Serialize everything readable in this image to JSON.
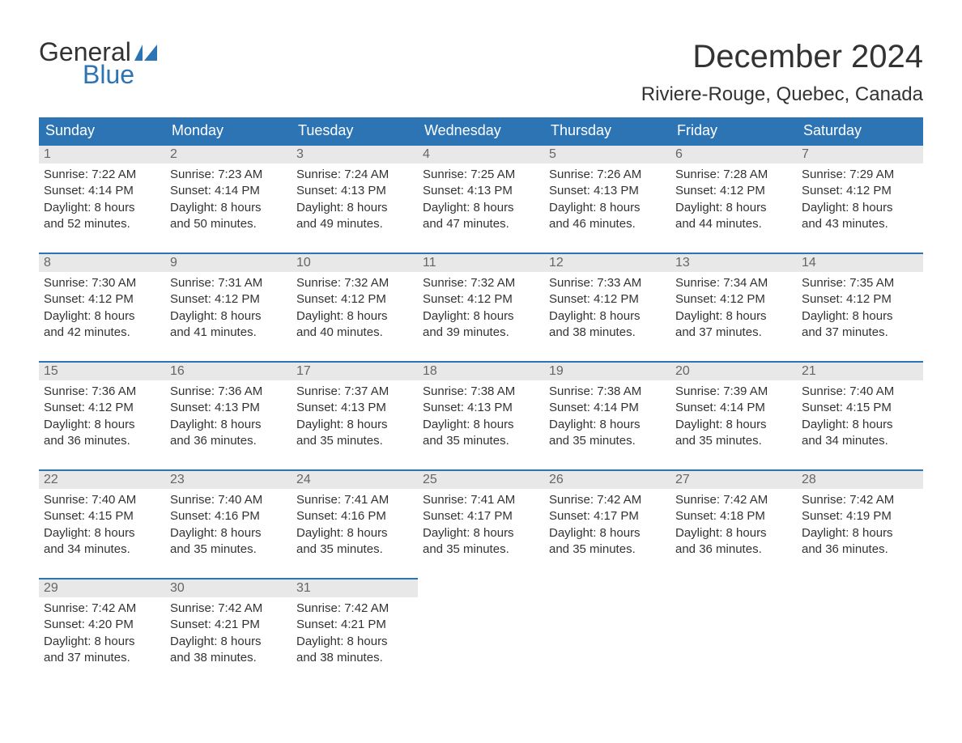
{
  "logo": {
    "line1": "General",
    "line2": "Blue"
  },
  "header": {
    "month": "December 2024",
    "location": "Riviere-Rouge, Quebec, Canada"
  },
  "columns": [
    "Sunday",
    "Monday",
    "Tuesday",
    "Wednesday",
    "Thursday",
    "Friday",
    "Saturday"
  ],
  "colors": {
    "header_bg": "#2d74b5",
    "header_text": "#ffffff",
    "daynum_bg": "#e8e8e8",
    "daynum_text": "#666666",
    "row_border": "#2d74b5",
    "body_text": "#333333",
    "logo_accent": "#2d74b5"
  },
  "weeks": [
    [
      {
        "n": "1",
        "sunrise": "Sunrise: 7:22 AM",
        "sunset": "Sunset: 4:14 PM",
        "d1": "Daylight: 8 hours",
        "d2": "and 52 minutes."
      },
      {
        "n": "2",
        "sunrise": "Sunrise: 7:23 AM",
        "sunset": "Sunset: 4:14 PM",
        "d1": "Daylight: 8 hours",
        "d2": "and 50 minutes."
      },
      {
        "n": "3",
        "sunrise": "Sunrise: 7:24 AM",
        "sunset": "Sunset: 4:13 PM",
        "d1": "Daylight: 8 hours",
        "d2": "and 49 minutes."
      },
      {
        "n": "4",
        "sunrise": "Sunrise: 7:25 AM",
        "sunset": "Sunset: 4:13 PM",
        "d1": "Daylight: 8 hours",
        "d2": "and 47 minutes."
      },
      {
        "n": "5",
        "sunrise": "Sunrise: 7:26 AM",
        "sunset": "Sunset: 4:13 PM",
        "d1": "Daylight: 8 hours",
        "d2": "and 46 minutes."
      },
      {
        "n": "6",
        "sunrise": "Sunrise: 7:28 AM",
        "sunset": "Sunset: 4:12 PM",
        "d1": "Daylight: 8 hours",
        "d2": "and 44 minutes."
      },
      {
        "n": "7",
        "sunrise": "Sunrise: 7:29 AM",
        "sunset": "Sunset: 4:12 PM",
        "d1": "Daylight: 8 hours",
        "d2": "and 43 minutes."
      }
    ],
    [
      {
        "n": "8",
        "sunrise": "Sunrise: 7:30 AM",
        "sunset": "Sunset: 4:12 PM",
        "d1": "Daylight: 8 hours",
        "d2": "and 42 minutes."
      },
      {
        "n": "9",
        "sunrise": "Sunrise: 7:31 AM",
        "sunset": "Sunset: 4:12 PM",
        "d1": "Daylight: 8 hours",
        "d2": "and 41 minutes."
      },
      {
        "n": "10",
        "sunrise": "Sunrise: 7:32 AM",
        "sunset": "Sunset: 4:12 PM",
        "d1": "Daylight: 8 hours",
        "d2": "and 40 minutes."
      },
      {
        "n": "11",
        "sunrise": "Sunrise: 7:32 AM",
        "sunset": "Sunset: 4:12 PM",
        "d1": "Daylight: 8 hours",
        "d2": "and 39 minutes."
      },
      {
        "n": "12",
        "sunrise": "Sunrise: 7:33 AM",
        "sunset": "Sunset: 4:12 PM",
        "d1": "Daylight: 8 hours",
        "d2": "and 38 minutes."
      },
      {
        "n": "13",
        "sunrise": "Sunrise: 7:34 AM",
        "sunset": "Sunset: 4:12 PM",
        "d1": "Daylight: 8 hours",
        "d2": "and 37 minutes."
      },
      {
        "n": "14",
        "sunrise": "Sunrise: 7:35 AM",
        "sunset": "Sunset: 4:12 PM",
        "d1": "Daylight: 8 hours",
        "d2": "and 37 minutes."
      }
    ],
    [
      {
        "n": "15",
        "sunrise": "Sunrise: 7:36 AM",
        "sunset": "Sunset: 4:12 PM",
        "d1": "Daylight: 8 hours",
        "d2": "and 36 minutes."
      },
      {
        "n": "16",
        "sunrise": "Sunrise: 7:36 AM",
        "sunset": "Sunset: 4:13 PM",
        "d1": "Daylight: 8 hours",
        "d2": "and 36 minutes."
      },
      {
        "n": "17",
        "sunrise": "Sunrise: 7:37 AM",
        "sunset": "Sunset: 4:13 PM",
        "d1": "Daylight: 8 hours",
        "d2": "and 35 minutes."
      },
      {
        "n": "18",
        "sunrise": "Sunrise: 7:38 AM",
        "sunset": "Sunset: 4:13 PM",
        "d1": "Daylight: 8 hours",
        "d2": "and 35 minutes."
      },
      {
        "n": "19",
        "sunrise": "Sunrise: 7:38 AM",
        "sunset": "Sunset: 4:14 PM",
        "d1": "Daylight: 8 hours",
        "d2": "and 35 minutes."
      },
      {
        "n": "20",
        "sunrise": "Sunrise: 7:39 AM",
        "sunset": "Sunset: 4:14 PM",
        "d1": "Daylight: 8 hours",
        "d2": "and 35 minutes."
      },
      {
        "n": "21",
        "sunrise": "Sunrise: 7:40 AM",
        "sunset": "Sunset: 4:15 PM",
        "d1": "Daylight: 8 hours",
        "d2": "and 34 minutes."
      }
    ],
    [
      {
        "n": "22",
        "sunrise": "Sunrise: 7:40 AM",
        "sunset": "Sunset: 4:15 PM",
        "d1": "Daylight: 8 hours",
        "d2": "and 34 minutes."
      },
      {
        "n": "23",
        "sunrise": "Sunrise: 7:40 AM",
        "sunset": "Sunset: 4:16 PM",
        "d1": "Daylight: 8 hours",
        "d2": "and 35 minutes."
      },
      {
        "n": "24",
        "sunrise": "Sunrise: 7:41 AM",
        "sunset": "Sunset: 4:16 PM",
        "d1": "Daylight: 8 hours",
        "d2": "and 35 minutes."
      },
      {
        "n": "25",
        "sunrise": "Sunrise: 7:41 AM",
        "sunset": "Sunset: 4:17 PM",
        "d1": "Daylight: 8 hours",
        "d2": "and 35 minutes."
      },
      {
        "n": "26",
        "sunrise": "Sunrise: 7:42 AM",
        "sunset": "Sunset: 4:17 PM",
        "d1": "Daylight: 8 hours",
        "d2": "and 35 minutes."
      },
      {
        "n": "27",
        "sunrise": "Sunrise: 7:42 AM",
        "sunset": "Sunset: 4:18 PM",
        "d1": "Daylight: 8 hours",
        "d2": "and 36 minutes."
      },
      {
        "n": "28",
        "sunrise": "Sunrise: 7:42 AM",
        "sunset": "Sunset: 4:19 PM",
        "d1": "Daylight: 8 hours",
        "d2": "and 36 minutes."
      }
    ],
    [
      {
        "n": "29",
        "sunrise": "Sunrise: 7:42 AM",
        "sunset": "Sunset: 4:20 PM",
        "d1": "Daylight: 8 hours",
        "d2": "and 37 minutes."
      },
      {
        "n": "30",
        "sunrise": "Sunrise: 7:42 AM",
        "sunset": "Sunset: 4:21 PM",
        "d1": "Daylight: 8 hours",
        "d2": "and 38 minutes."
      },
      {
        "n": "31",
        "sunrise": "Sunrise: 7:42 AM",
        "sunset": "Sunset: 4:21 PM",
        "d1": "Daylight: 8 hours",
        "d2": "and 38 minutes."
      },
      null,
      null,
      null,
      null
    ]
  ]
}
